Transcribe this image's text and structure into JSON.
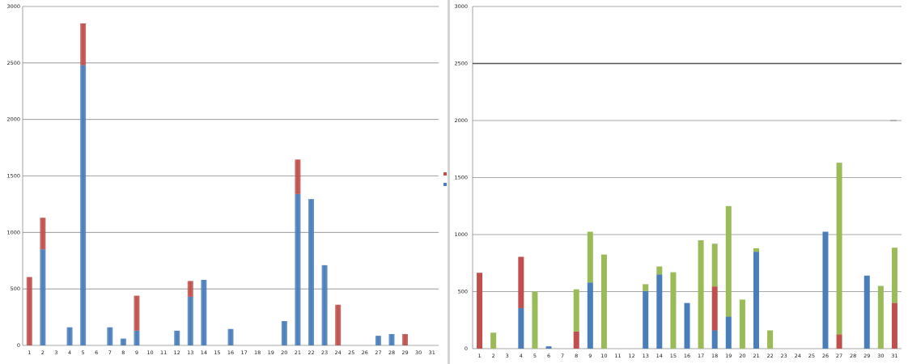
{
  "colors": {
    "blue": "#4a7ebb",
    "red": "#c0504d",
    "green": "#9bbb59"
  },
  "chart_data": [
    {
      "type": "bar",
      "stacked": true,
      "categories": [
        "1",
        "2",
        "3",
        "4",
        "5",
        "6",
        "7",
        "8",
        "9",
        "10",
        "11",
        "12",
        "13",
        "14",
        "15",
        "16",
        "17",
        "18",
        "19",
        "20",
        "21",
        "22",
        "23",
        "24",
        "25",
        "26",
        "27",
        "28",
        "29",
        "30",
        "31"
      ],
      "y_ticks": [
        "0",
        "500",
        "1000",
        "1500",
        "2000",
        "2500",
        "3000"
      ],
      "ylim": [
        0,
        3000
      ],
      "grid": true,
      "legend": {
        "position": "right",
        "labels": [
          "",
          ""
        ]
      },
      "series": [
        {
          "color": "#4a7ebb",
          "values": [
            0,
            850,
            0,
            160,
            2480,
            0,
            160,
            60,
            130,
            0,
            0,
            130,
            430,
            580,
            0,
            145,
            0,
            0,
            0,
            215,
            1340,
            1295,
            710,
            0,
            0,
            0,
            85,
            100,
            0,
            0,
            0
          ]
        },
        {
          "color": "#c0504d",
          "values": [
            605,
            280,
            0,
            0,
            370,
            0,
            0,
            0,
            310,
            0,
            0,
            0,
            140,
            0,
            0,
            0,
            0,
            0,
            0,
            0,
            305,
            0,
            0,
            360,
            0,
            0,
            0,
            0,
            100,
            0,
            0
          ]
        }
      ]
    },
    {
      "type": "bar",
      "stacked": true,
      "categories": [
        "1",
        "2",
        "3",
        "4",
        "5",
        "6",
        "7",
        "8",
        "9",
        "10",
        "11",
        "12",
        "13",
        "14",
        "15",
        "16",
        "17",
        "18",
        "19",
        "20",
        "21",
        "22",
        "23",
        "24",
        "25",
        "26",
        "27",
        "28",
        "29",
        "30",
        "31"
      ],
      "y_ticks": [
        "0",
        "500",
        "1000",
        "1500",
        "2000",
        "2500",
        "3000"
      ],
      "ylim": [
        0,
        3000
      ],
      "grid": true,
      "series": [
        {
          "color": "#c0504d",
          "values": [
            665,
            0,
            0,
            0,
            0,
            0,
            0,
            150,
            0,
            0,
            0,
            0,
            0,
            0,
            0,
            0,
            0,
            0,
            0,
            0,
            0,
            0,
            0,
            0,
            0,
            0,
            125,
            0,
            0,
            0,
            0
          ]
        },
        {
          "color": "#4a7ebb",
          "values": [
            0,
            0,
            0,
            355,
            0,
            20,
            0,
            0,
            580,
            0,
            0,
            0,
            0,
            640,
            240,
            400,
            0,
            0,
            280,
            0,
            850,
            0,
            0,
            0,
            0,
            1025,
            0,
            0,
            640,
            0,
            0
          ]
        },
        {
          "color": "#c0504d",
          "values": [
            0,
            0,
            0,
            450,
            0,
            0,
            0,
            0,
            0,
            0,
            0,
            0,
            0,
            0,
            0,
            0,
            0,
            0,
            0,
            0,
            0,
            0,
            0,
            0,
            0,
            0,
            0,
            0,
            0,
            0,
            400
          ]
        },
        {
          "color": "#9bbb59",
          "values": [
            0,
            140,
            0,
            0,
            500,
            0,
            0,
            370,
            445,
            825,
            0,
            0,
            0,
            80,
            670,
            0,
            950,
            0,
            970,
            430,
            30,
            160,
            0,
            0,
            0,
            0,
            1505,
            0,
            0,
            550,
            485
          ]
        }
      ],
      "extra": {
        "red_bottom_18": 545,
        "blue_bottom_18": 160,
        "green_top_18": 375,
        "blue_14": 505,
        "green_14": 60
      }
    }
  ]
}
